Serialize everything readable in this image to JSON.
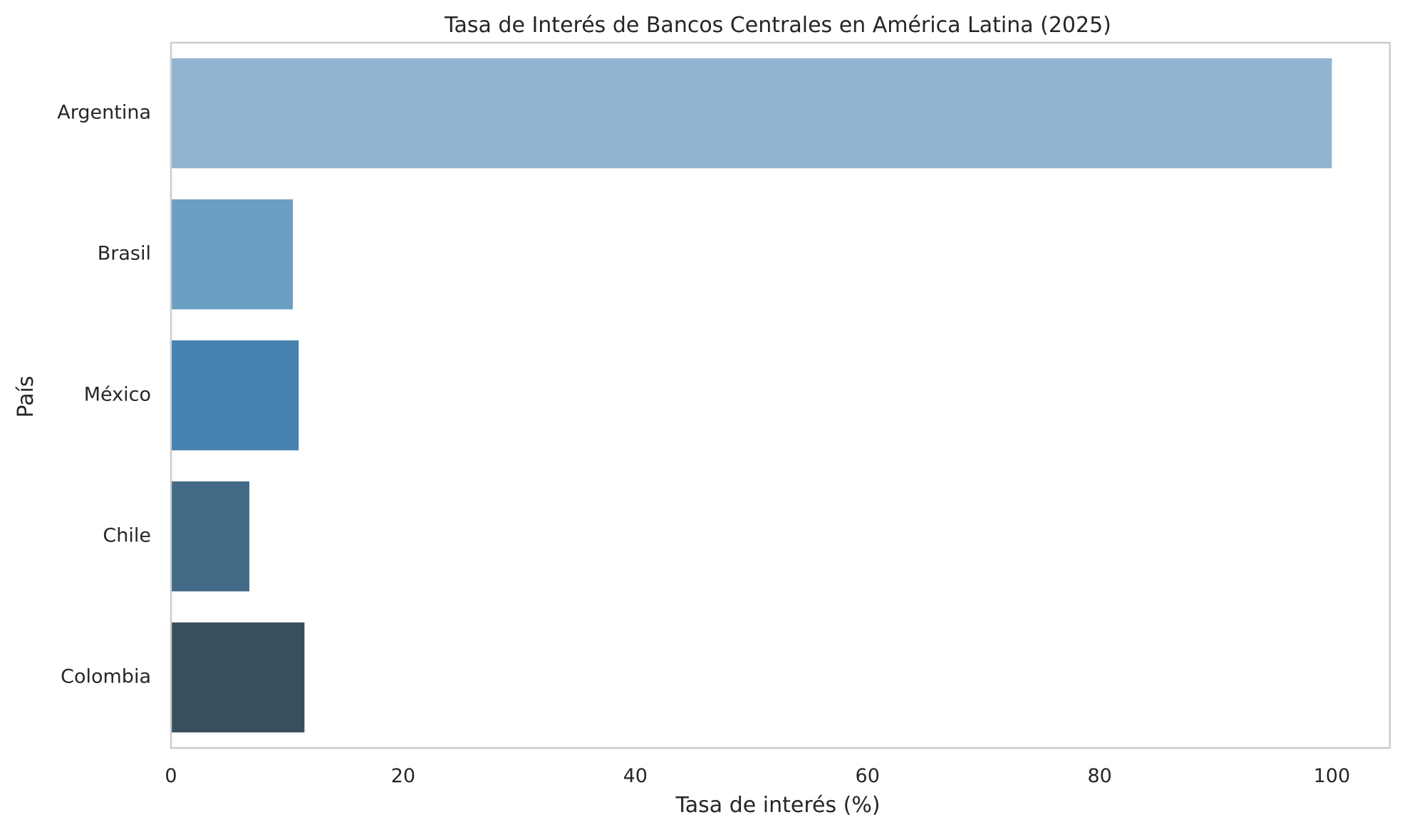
{
  "chart_data": {
    "type": "bar",
    "orientation": "horizontal",
    "title": "Tasa de Interés de Bancos Centrales en América Latina (2025)",
    "xlabel": "Tasa de interés (%)",
    "ylabel": "País",
    "categories": [
      "Argentina",
      "Brasil",
      "México",
      "Chile",
      "Colombia"
    ],
    "values": [
      100,
      10.5,
      11,
      6.75,
      11.5
    ],
    "colors": [
      "#91b4d2",
      "#6b9fc3",
      "#4782b0",
      "#436a87",
      "#384f5d"
    ],
    "xlim": [
      0,
      105
    ],
    "xticks": [
      0,
      20,
      40,
      60,
      80,
      100
    ],
    "grid": false,
    "legend": "none"
  }
}
